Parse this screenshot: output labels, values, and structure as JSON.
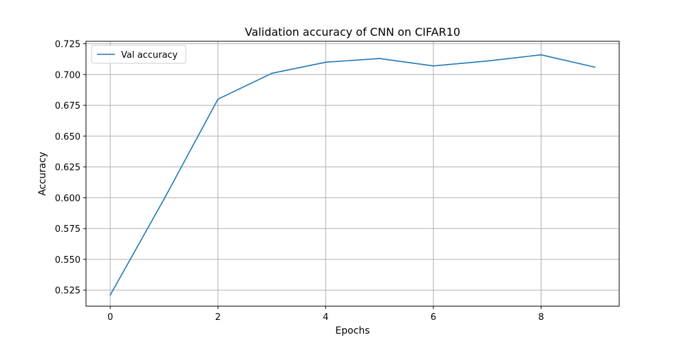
{
  "chart_data": {
    "type": "line",
    "title": "Validation accuracy of CNN on CIFAR10",
    "xlabel": "Epochs",
    "ylabel": "Accuracy",
    "xlim": [
      -0.45,
      9.45
    ],
    "ylim": [
      0.512,
      0.727
    ],
    "xticks": [
      0,
      2,
      4,
      6,
      8
    ],
    "xtick_labels": [
      "0",
      "2",
      "4",
      "6",
      "8"
    ],
    "yticks": [
      0.525,
      0.55,
      0.575,
      0.6,
      0.625,
      0.65,
      0.675,
      0.7,
      0.725
    ],
    "ytick_labels": [
      "0.525",
      "0.550",
      "0.575",
      "0.600",
      "0.625",
      "0.650",
      "0.675",
      "0.700",
      "0.725"
    ],
    "grid": true,
    "legend_position": "top-left",
    "x": [
      0,
      1,
      2,
      3,
      4,
      5,
      6,
      7,
      8,
      9
    ],
    "series": [
      {
        "name": "Val accuracy",
        "color": "#1f77b4",
        "values": [
          0.521,
          0.599,
          0.68,
          0.701,
          0.71,
          0.713,
          0.707,
          0.711,
          0.716,
          0.706
        ]
      }
    ]
  }
}
